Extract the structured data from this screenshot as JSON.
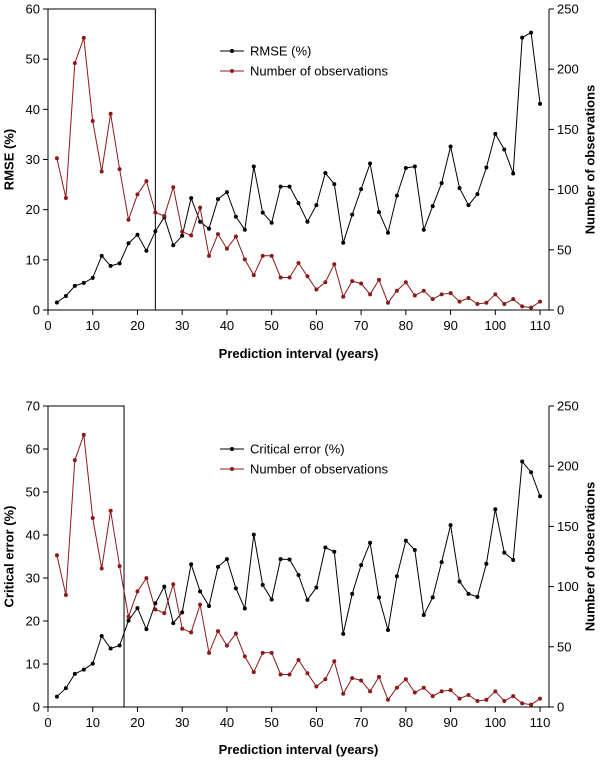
{
  "colors": {
    "series_black": "#000000",
    "series_red": "#8B1A1A"
  },
  "chart_data": [
    {
      "type": "line",
      "xlabel": "Prediction interval (years)",
      "ylabel": "RMSE (%)",
      "y2label": "Number of observations",
      "xlim": [
        0,
        112
      ],
      "xticks": [
        0,
        10,
        20,
        30,
        40,
        50,
        60,
        70,
        80,
        90,
        100,
        110
      ],
      "ylim": [
        0,
        60
      ],
      "yticks": [
        0,
        10,
        20,
        30,
        40,
        50,
        60
      ],
      "y2lim": [
        0,
        250
      ],
      "y2ticks": [
        0,
        50,
        100,
        150,
        200,
        250
      ],
      "grid": false,
      "legend": "top-center",
      "highlight_box": {
        "x": [
          0,
          24
        ],
        "y": [
          0,
          60
        ]
      },
      "series": [
        {
          "name": "RMSE (%)",
          "axis": "left",
          "color": "#000000",
          "x": [
            2,
            4,
            6,
            8,
            10,
            12,
            14,
            16,
            18,
            20,
            22,
            24,
            26,
            28,
            30,
            32,
            34,
            36,
            38,
            40,
            42,
            44,
            46,
            48,
            50,
            52,
            54,
            56,
            58,
            60,
            62,
            64,
            66,
            68,
            70,
            72,
            74,
            76,
            78,
            80,
            82,
            84,
            86,
            88,
            90,
            92,
            94,
            96,
            98,
            100,
            102,
            104,
            106,
            108,
            110
          ],
          "y": [
            1.5,
            2.8,
            4.8,
            5.4,
            6.4,
            10.8,
            8.8,
            9.3,
            13.3,
            15.0,
            11.8,
            15.7,
            18.5,
            12.9,
            14.8,
            22.3,
            17.6,
            16.2,
            22.1,
            23.5,
            18.6,
            16.0,
            28.6,
            19.4,
            17.4,
            24.6,
            24.6,
            21.3,
            17.6,
            20.9,
            27.3,
            25.1,
            13.4,
            19.0,
            24.1,
            29.2,
            19.5,
            15.4,
            22.8,
            28.3,
            28.6,
            16.0,
            20.7,
            25.3,
            32.6,
            24.3,
            20.9,
            23.1,
            28.4,
            35.1,
            32.0,
            27.2,
            54.3,
            55.3,
            41.1
          ]
        },
        {
          "name": "Number of observations",
          "axis": "right",
          "color": "#8B1A1A",
          "x": [
            2,
            4,
            6,
            8,
            10,
            12,
            14,
            16,
            18,
            20,
            22,
            24,
            26,
            28,
            30,
            32,
            34,
            36,
            38,
            40,
            42,
            44,
            46,
            48,
            50,
            52,
            54,
            56,
            58,
            60,
            62,
            64,
            66,
            68,
            70,
            72,
            74,
            76,
            78,
            80,
            82,
            84,
            86,
            88,
            90,
            92,
            94,
            96,
            98,
            100,
            102,
            104,
            106,
            108,
            110
          ],
          "y": [
            126,
            93,
            205,
            226,
            157,
            115,
            163,
            117,
            75,
            96,
            107,
            81,
            78,
            102,
            65,
            62,
            85,
            45,
            63,
            51,
            61,
            42,
            29,
            45,
            45,
            27,
            27,
            39,
            28,
            17,
            23,
            38,
            11,
            24,
            22,
            13,
            25,
            6,
            16,
            23,
            12,
            16,
            9,
            13,
            14,
            7,
            10,
            5,
            6,
            13,
            5,
            9,
            3,
            2,
            7
          ]
        }
      ]
    },
    {
      "type": "line",
      "xlabel": "Prediction interval (years)",
      "ylabel": "Critical error (%)",
      "y2label": "Number of observations",
      "xlim": [
        0,
        112
      ],
      "xticks": [
        0,
        10,
        20,
        30,
        40,
        50,
        60,
        70,
        80,
        90,
        100,
        110
      ],
      "ylim": [
        0,
        70
      ],
      "yticks": [
        0,
        10,
        20,
        30,
        40,
        50,
        60,
        70
      ],
      "y2lim": [
        0,
        250
      ],
      "y2ticks": [
        0,
        50,
        100,
        150,
        200,
        250
      ],
      "grid": false,
      "legend": "top-center",
      "highlight_box": {
        "x": [
          0,
          17
        ],
        "y": [
          0,
          70
        ]
      },
      "series": [
        {
          "name": "Critical error (%)",
          "axis": "left",
          "color": "#000000",
          "x": [
            2,
            4,
            6,
            8,
            10,
            12,
            14,
            16,
            18,
            20,
            22,
            24,
            26,
            28,
            30,
            32,
            34,
            36,
            38,
            40,
            42,
            44,
            46,
            48,
            50,
            52,
            54,
            56,
            58,
            60,
            62,
            64,
            66,
            68,
            70,
            72,
            74,
            76,
            78,
            80,
            82,
            84,
            86,
            88,
            90,
            92,
            94,
            96,
            98,
            100,
            102,
            104,
            106,
            108,
            110
          ],
          "y": [
            2.4,
            4.4,
            7.7,
            8.7,
            10.1,
            16.5,
            13.6,
            14.3,
            20.1,
            23.0,
            18.1,
            24.1,
            28.0,
            19.5,
            22.0,
            33.2,
            26.9,
            23.5,
            32.6,
            34.4,
            27.6,
            22.9,
            40.1,
            28.4,
            25.0,
            34.4,
            34.3,
            30.7,
            24.9,
            27.8,
            37.1,
            36.1,
            17.0,
            26.3,
            33.0,
            38.2,
            25.5,
            17.9,
            30.4,
            38.7,
            36.5,
            21.4,
            25.5,
            33.7,
            42.3,
            29.2,
            26.3,
            25.6,
            33.3,
            46.0,
            35.9,
            34.2,
            57.1,
            54.6,
            49.0
          ]
        },
        {
          "name": "Number of observations",
          "axis": "right",
          "color": "#8B1A1A",
          "x": [
            2,
            4,
            6,
            8,
            10,
            12,
            14,
            16,
            18,
            20,
            22,
            24,
            26,
            28,
            30,
            32,
            34,
            36,
            38,
            40,
            42,
            44,
            46,
            48,
            50,
            52,
            54,
            56,
            58,
            60,
            62,
            64,
            66,
            68,
            70,
            72,
            74,
            76,
            78,
            80,
            82,
            84,
            86,
            88,
            90,
            92,
            94,
            96,
            98,
            100,
            102,
            104,
            106,
            108,
            110
          ],
          "y": [
            126,
            93,
            205,
            226,
            157,
            115,
            163,
            117,
            75,
            96,
            107,
            81,
            78,
            102,
            65,
            62,
            85,
            45,
            63,
            51,
            61,
            42,
            29,
            45,
            45,
            27,
            27,
            39,
            28,
            17,
            23,
            38,
            11,
            24,
            22,
            13,
            25,
            6,
            16,
            23,
            12,
            16,
            9,
            13,
            14,
            7,
            10,
            5,
            6,
            13,
            5,
            9,
            3,
            2,
            7
          ]
        }
      ]
    }
  ]
}
